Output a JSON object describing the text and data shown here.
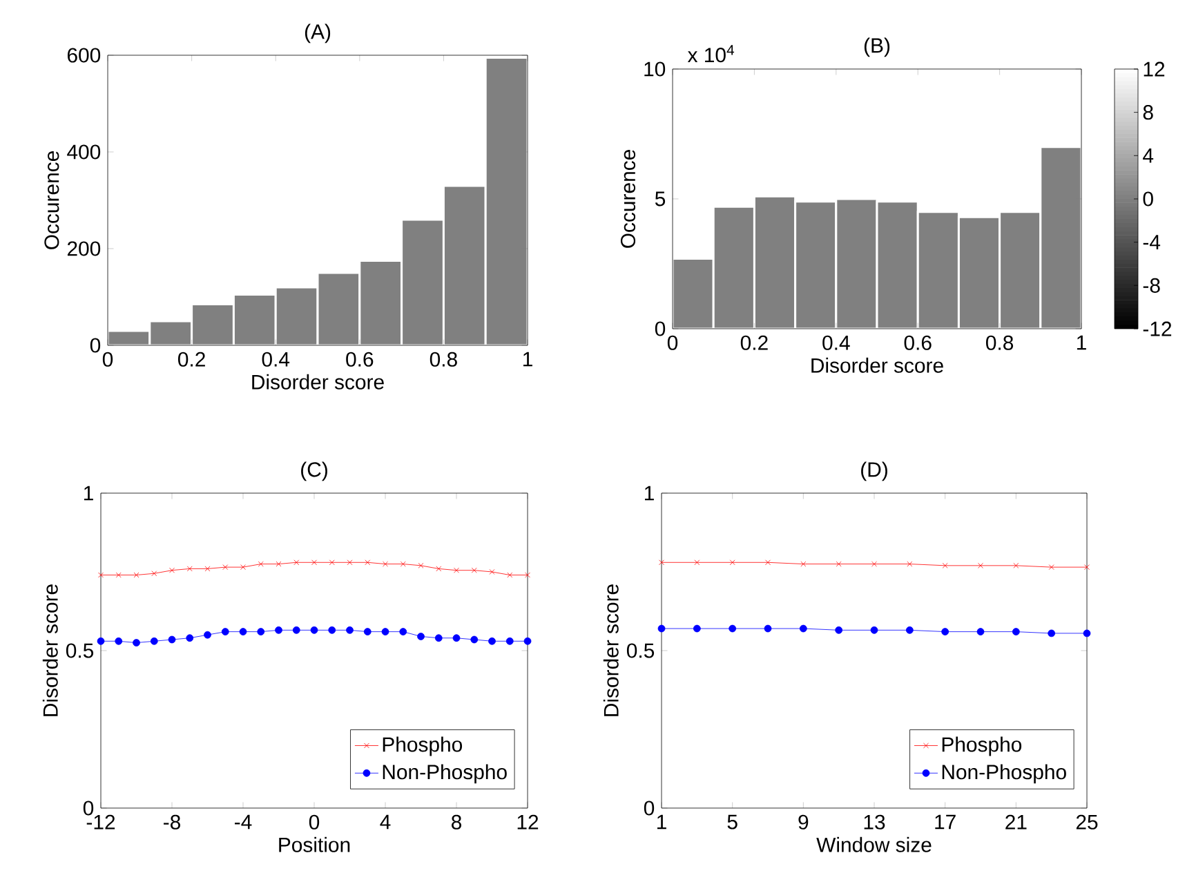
{
  "chart_data": [
    {
      "type": "histogram",
      "title": "(A)",
      "xlabel": "Disorder score",
      "ylabel": "Occurence",
      "color": "#808080",
      "bins": [
        0,
        0.1,
        0.2,
        0.3,
        0.4,
        0.5,
        0.6,
        0.7,
        0.8,
        0.9,
        1.0
      ],
      "values": [
        30,
        50,
        85,
        105,
        120,
        150,
        175,
        260,
        330,
        595
      ],
      "xlim": [
        0,
        1
      ],
      "ylim": [
        0,
        600
      ],
      "xticks": [
        0,
        0.2,
        0.4,
        0.6,
        0.8,
        1
      ],
      "yticks": [
        0,
        200,
        400,
        600
      ]
    },
    {
      "type": "histogram",
      "title": "(B)",
      "xlabel": "Disorder score",
      "ylabel": "Occurence",
      "color": "#808080",
      "bins": [
        0,
        0.1,
        0.2,
        0.3,
        0.4,
        0.5,
        0.6,
        0.7,
        0.8,
        0.9,
        1.0
      ],
      "values": [
        2.7,
        4.7,
        5.1,
        4.9,
        5.0,
        4.9,
        4.5,
        4.3,
        4.5,
        7.0
      ],
      "xlim": [
        0,
        1
      ],
      "ylim": [
        0,
        10
      ],
      "xticks": [
        0,
        0.2,
        0.4,
        0.6,
        0.8,
        1
      ],
      "yticks": [
        0,
        5,
        10
      ],
      "annotations": [
        "x 10$^{4}$"
      ],
      "clim": [
        -12,
        12
      ],
      "cticks": [
        -12,
        -8,
        -4,
        0,
        4,
        8,
        12
      ]
    },
    {
      "type": "line",
      "title": "(C)",
      "xlabel": "Position",
      "ylabel": "Disorder score",
      "legend": "bottom right",
      "x": [
        -12,
        -11,
        -10,
        -9,
        -8,
        -7,
        -6,
        -5,
        -4,
        -3,
        -2,
        -1,
        0,
        1,
        2,
        3,
        4,
        5,
        6,
        7,
        8,
        9,
        10,
        11,
        12
      ],
      "series": [
        {
          "name": "Phospho",
          "color": "#ff0000",
          "marker": "cross",
          "values": [
            0.74,
            0.74,
            0.74,
            0.745,
            0.755,
            0.76,
            0.76,
            0.765,
            0.765,
            0.775,
            0.775,
            0.78,
            0.78,
            0.78,
            0.78,
            0.78,
            0.775,
            0.775,
            0.77,
            0.76,
            0.755,
            0.755,
            0.75,
            0.74,
            0.74
          ]
        },
        {
          "name": "Non-Phospho",
          "color": "#0000ff",
          "marker": "circle",
          "values": [
            0.53,
            0.53,
            0.525,
            0.53,
            0.535,
            0.54,
            0.55,
            0.56,
            0.56,
            0.56,
            0.565,
            0.565,
            0.565,
            0.565,
            0.565,
            0.56,
            0.56,
            0.56,
            0.545,
            0.54,
            0.54,
            0.535,
            0.53,
            0.53,
            0.53
          ]
        }
      ],
      "xlim": [
        -12,
        12
      ],
      "ylim": [
        0,
        1
      ],
      "xticks": [
        -12,
        -8,
        -4,
        0,
        4,
        8,
        12
      ],
      "yticks": [
        0,
        0.5,
        1
      ]
    },
    {
      "type": "line",
      "title": "(D)",
      "xlabel": "Window size",
      "ylabel": "Disorder score",
      "legend": "bottom right",
      "x": [
        1,
        3,
        5,
        7,
        9,
        11,
        13,
        15,
        17,
        19,
        21,
        23,
        25
      ],
      "series": [
        {
          "name": "Phospho",
          "color": "#ff0000",
          "marker": "cross",
          "values": [
            0.78,
            0.78,
            0.78,
            0.78,
            0.775,
            0.775,
            0.775,
            0.775,
            0.77,
            0.77,
            0.77,
            0.765,
            0.765
          ]
        },
        {
          "name": "Non-Phospho",
          "color": "#0000ff",
          "marker": "circle",
          "values": [
            0.57,
            0.57,
            0.57,
            0.57,
            0.57,
            0.565,
            0.565,
            0.565,
            0.56,
            0.56,
            0.56,
            0.555,
            0.555
          ]
        }
      ],
      "xlim": [
        1,
        25
      ],
      "ylim": [
        0,
        1
      ],
      "xticks": [
        1,
        5,
        9,
        13,
        17,
        21,
        25
      ],
      "yticks": [
        0,
        0.5,
        1
      ]
    }
  ]
}
